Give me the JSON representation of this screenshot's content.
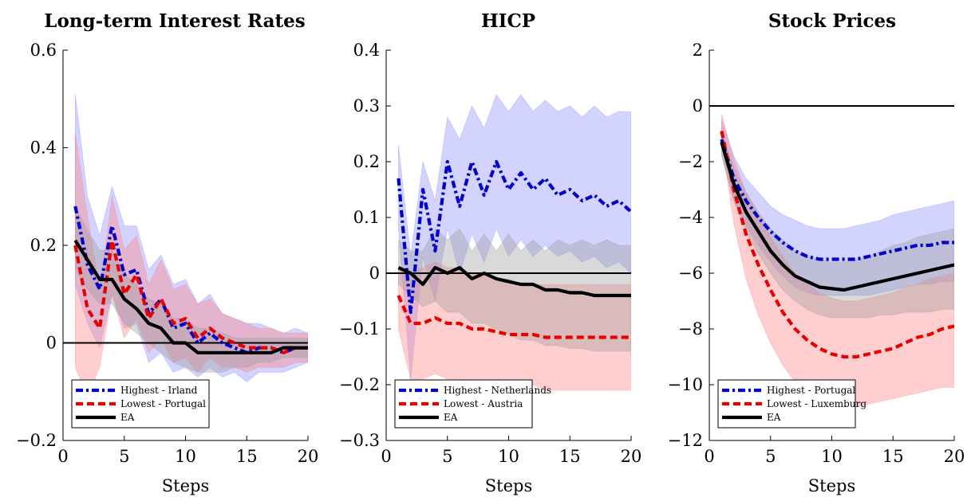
{
  "colors": {
    "highest": "#0000cc",
    "lowest": "#e60000",
    "ea": "#000000",
    "band_highest": "#8c8cff",
    "band_lowest": "#ff8080",
    "band_ea": "#9a9a9a"
  },
  "chart_data": [
    {
      "type": "line",
      "title": "Long-term Interest Rates",
      "xlabel": "Steps",
      "ylabel": "",
      "xlim": [
        0,
        20
      ],
      "ylim": [
        -0.2,
        0.6
      ],
      "xticks": [
        0,
        5,
        10,
        15,
        20
      ],
      "yticks": [
        -0.2,
        0,
        0.2,
        0.4,
        0.6
      ],
      "ytick_labels": [
        "−0.2",
        "0",
        "0.2",
        "0.4",
        "0.6"
      ],
      "zero_line": 0,
      "legend_position": "bottom-left",
      "x": [
        1,
        2,
        3,
        4,
        5,
        6,
        7,
        8,
        9,
        10,
        11,
        12,
        13,
        14,
        15,
        16,
        17,
        18,
        19,
        20
      ],
      "series": [
        {
          "name": "Highest - Irland",
          "style": "dashdot",
          "values": [
            0.28,
            0.16,
            0.11,
            0.24,
            0.14,
            0.15,
            0.06,
            0.09,
            0.03,
            0.04,
            0.0,
            0.02,
            0.0,
            -0.01,
            -0.02,
            -0.01,
            -0.01,
            -0.02,
            -0.01,
            -0.01
          ],
          "lower": [
            0.12,
            0.04,
            -0.01,
            0.1,
            0.03,
            0.04,
            -0.04,
            -0.02,
            -0.06,
            -0.05,
            -0.07,
            -0.05,
            -0.07,
            -0.06,
            -0.08,
            -0.06,
            -0.06,
            -0.06,
            -0.05,
            -0.04
          ],
          "upper": [
            0.51,
            0.3,
            0.22,
            0.32,
            0.24,
            0.24,
            0.15,
            0.18,
            0.12,
            0.13,
            0.08,
            0.1,
            0.06,
            0.05,
            0.04,
            0.04,
            0.03,
            0.02,
            0.03,
            0.02
          ]
        },
        {
          "name": "Lowest - Portugal",
          "style": "dashed",
          "values": [
            0.2,
            0.07,
            0.03,
            0.21,
            0.1,
            0.14,
            0.05,
            0.09,
            0.04,
            0.05,
            0.01,
            0.03,
            0.01,
            0.0,
            -0.01,
            -0.01,
            -0.01,
            -0.02,
            -0.01,
            -0.01
          ],
          "lower": [
            -0.05,
            -0.11,
            -0.05,
            0.1,
            0.01,
            0.05,
            -0.02,
            0.01,
            -0.04,
            -0.03,
            -0.06,
            -0.03,
            -0.05,
            -0.05,
            -0.06,
            -0.05,
            -0.05,
            -0.05,
            -0.04,
            -0.04
          ],
          "upper": [
            0.43,
            0.26,
            0.11,
            0.3,
            0.19,
            0.22,
            0.12,
            0.17,
            0.11,
            0.12,
            0.08,
            0.09,
            0.06,
            0.05,
            0.04,
            0.03,
            0.03,
            0.02,
            0.02,
            0.02
          ]
        },
        {
          "name": "EA",
          "style": "solid",
          "values": [
            0.21,
            0.17,
            0.13,
            0.13,
            0.09,
            0.07,
            0.04,
            0.03,
            0.0,
            0.0,
            -0.02,
            -0.02,
            -0.02,
            -0.02,
            -0.02,
            -0.02,
            -0.02,
            -0.01,
            -0.01,
            -0.01
          ],
          "lower": [
            0.15,
            0.11,
            0.08,
            0.08,
            0.04,
            0.02,
            0.0,
            -0.02,
            -0.04,
            -0.05,
            -0.06,
            -0.06,
            -0.06,
            -0.05,
            -0.05,
            -0.04,
            -0.04,
            -0.03,
            -0.03,
            -0.03
          ],
          "upper": [
            0.28,
            0.23,
            0.19,
            0.19,
            0.14,
            0.12,
            0.09,
            0.08,
            0.05,
            0.05,
            0.03,
            0.03,
            0.02,
            0.01,
            0.01,
            0.01,
            0.01,
            0.01,
            0.01,
            0.01
          ]
        }
      ]
    },
    {
      "type": "line",
      "title": "HICP",
      "xlabel": "Steps",
      "ylabel": "",
      "xlim": [
        0,
        20
      ],
      "ylim": [
        -0.3,
        0.4
      ],
      "xticks": [
        0,
        5,
        10,
        15,
        20
      ],
      "yticks": [
        -0.3,
        -0.2,
        -0.1,
        0,
        0.1,
        0.2,
        0.3,
        0.4
      ],
      "ytick_labels": [
        "−0.3",
        "−0.2",
        "−0.1",
        "0",
        "0.1",
        "0.2",
        "0.3",
        "0.4"
      ],
      "zero_line": 0,
      "legend_position": "bottom-left",
      "x": [
        1,
        2,
        3,
        4,
        5,
        6,
        7,
        8,
        9,
        10,
        11,
        12,
        13,
        14,
        15,
        16,
        17,
        18,
        19,
        20
      ],
      "series": [
        {
          "name": "Highest - Netherlands",
          "style": "dashdot",
          "values": [
            0.17,
            -0.07,
            0.15,
            0.04,
            0.2,
            0.12,
            0.2,
            0.14,
            0.2,
            0.15,
            0.18,
            0.15,
            0.17,
            0.14,
            0.15,
            0.13,
            0.14,
            0.12,
            0.13,
            0.11
          ],
          "lower": [
            0.08,
            -0.19,
            0.03,
            -0.05,
            0.08,
            0.0,
            0.07,
            0.02,
            0.08,
            0.03,
            0.06,
            0.03,
            0.05,
            0.03,
            0.04,
            0.02,
            0.03,
            0.01,
            0.02,
            0.0
          ],
          "upper": [
            0.23,
            0.03,
            0.2,
            0.13,
            0.28,
            0.24,
            0.3,
            0.26,
            0.32,
            0.29,
            0.32,
            0.29,
            0.31,
            0.29,
            0.3,
            0.28,
            0.3,
            0.28,
            0.29,
            0.29
          ]
        },
        {
          "name": "Lowest - Austria",
          "style": "dashed",
          "values": [
            -0.04,
            -0.09,
            -0.09,
            -0.08,
            -0.09,
            -0.09,
            -0.1,
            -0.1,
            -0.105,
            -0.11,
            -0.11,
            -0.11,
            -0.115,
            -0.115,
            -0.115,
            -0.115,
            -0.115,
            -0.115,
            -0.115,
            -0.115
          ],
          "lower": [
            -0.1,
            -0.19,
            -0.19,
            -0.18,
            -0.19,
            -0.19,
            -0.2,
            -0.2,
            -0.2,
            -0.2,
            -0.2,
            -0.2,
            -0.21,
            -0.21,
            -0.21,
            -0.21,
            -0.21,
            -0.21,
            -0.21,
            -0.21
          ],
          "upper": [
            0.01,
            0.0,
            0.01,
            0.02,
            0.01,
            0.01,
            0.0,
            0.0,
            -0.01,
            -0.01,
            -0.02,
            -0.02,
            -0.02,
            -0.02,
            -0.02,
            -0.02,
            -0.02,
            -0.02,
            -0.02,
            -0.02
          ]
        },
        {
          "name": "EA",
          "style": "solid",
          "values": [
            0.01,
            0.0,
            -0.02,
            0.01,
            0.0,
            0.01,
            -0.01,
            0.0,
            -0.01,
            -0.015,
            -0.02,
            -0.02,
            -0.03,
            -0.03,
            -0.035,
            -0.035,
            -0.04,
            -0.04,
            -0.04,
            -0.04
          ],
          "lower": [
            -0.02,
            -0.04,
            -0.06,
            -0.05,
            -0.07,
            -0.07,
            -0.09,
            -0.09,
            -0.1,
            -0.11,
            -0.12,
            -0.12,
            -0.13,
            -0.13,
            -0.135,
            -0.135,
            -0.14,
            -0.14,
            -0.14,
            -0.14
          ],
          "upper": [
            0.06,
            0.04,
            0.04,
            0.08,
            0.06,
            0.08,
            0.04,
            0.07,
            0.04,
            0.07,
            0.04,
            0.06,
            0.04,
            0.06,
            0.05,
            0.06,
            0.05,
            0.06,
            0.05,
            0.05
          ]
        }
      ]
    },
    {
      "type": "line",
      "title": "Stock Prices",
      "xlabel": "Steps",
      "ylabel": "",
      "xlim": [
        0,
        20
      ],
      "ylim": [
        -12,
        2
      ],
      "xticks": [
        0,
        5,
        10,
        15,
        20
      ],
      "yticks": [
        -12,
        -10,
        -8,
        -6,
        -4,
        -2,
        0,
        2
      ],
      "ytick_labels": [
        "−12",
        "−10",
        "−8",
        "−6",
        "−4",
        "−2",
        "0",
        "2"
      ],
      "zero_line": 0,
      "legend_position": "bottom-left",
      "x": [
        1,
        2,
        3,
        4,
        5,
        6,
        7,
        8,
        9,
        10,
        11,
        12,
        13,
        14,
        15,
        16,
        17,
        18,
        19,
        20
      ],
      "series": [
        {
          "name": "Highest - Portugal",
          "style": "dashdot",
          "values": [
            -1.2,
            -2.6,
            -3.4,
            -4.0,
            -4.5,
            -4.9,
            -5.2,
            -5.4,
            -5.5,
            -5.5,
            -5.5,
            -5.5,
            -5.4,
            -5.3,
            -5.2,
            -5.1,
            -5.0,
            -5.0,
            -4.9,
            -4.9
          ],
          "lower": [
            -1.8,
            -3.4,
            -4.3,
            -5.0,
            -5.6,
            -6.1,
            -6.5,
            -6.7,
            -6.8,
            -6.8,
            -6.8,
            -6.8,
            -6.8,
            -6.7,
            -6.6,
            -6.5,
            -6.4,
            -6.4,
            -6.3,
            -6.3
          ],
          "upper": [
            -0.5,
            -1.8,
            -2.6,
            -3.1,
            -3.6,
            -3.9,
            -4.1,
            -4.3,
            -4.4,
            -4.4,
            -4.4,
            -4.3,
            -4.2,
            -4.1,
            -3.9,
            -3.8,
            -3.7,
            -3.6,
            -3.5,
            -3.4
          ]
        },
        {
          "name": "Lowest - Luxemburg",
          "style": "dashed",
          "values": [
            -0.9,
            -3.0,
            -4.6,
            -5.7,
            -6.6,
            -7.4,
            -8.0,
            -8.4,
            -8.7,
            -8.9,
            -9.0,
            -9.0,
            -8.9,
            -8.8,
            -8.7,
            -8.5,
            -8.3,
            -8.2,
            -8.0,
            -7.9
          ],
          "lower": [
            -1.3,
            -4.2,
            -6.2,
            -7.5,
            -8.5,
            -9.3,
            -9.9,
            -10.3,
            -10.6,
            -10.7,
            -10.8,
            -10.8,
            -10.7,
            -10.6,
            -10.5,
            -10.4,
            -10.3,
            -10.2,
            -10.1,
            -10.1
          ],
          "upper": [
            -0.3,
            -1.9,
            -3.1,
            -3.9,
            -4.7,
            -5.4,
            -6.0,
            -6.4,
            -6.7,
            -6.9,
            -7.0,
            -7.0,
            -6.9,
            -6.8,
            -6.7,
            -6.5,
            -6.4,
            -6.2,
            -6.1,
            -6.0
          ]
        },
        {
          "name": "EA",
          "style": "solid",
          "values": [
            -1.3,
            -2.8,
            -3.8,
            -4.5,
            -5.2,
            -5.7,
            -6.1,
            -6.3,
            -6.5,
            -6.55,
            -6.6,
            -6.5,
            -6.4,
            -6.3,
            -6.2,
            -6.1,
            -6.0,
            -5.9,
            -5.8,
            -5.7
          ],
          "lower": [
            -1.7,
            -3.4,
            -4.5,
            -5.3,
            -6.0,
            -6.6,
            -7.0,
            -7.3,
            -7.5,
            -7.6,
            -7.6,
            -7.6,
            -7.6,
            -7.5,
            -7.5,
            -7.4,
            -7.4,
            -7.4,
            -7.3,
            -7.3
          ],
          "upper": [
            -0.9,
            -2.2,
            -3.1,
            -3.8,
            -4.4,
            -4.8,
            -5.2,
            -5.4,
            -5.5,
            -5.6,
            -5.6,
            -5.5,
            -5.4,
            -5.2,
            -5.0,
            -4.9,
            -4.7,
            -4.6,
            -4.5,
            -4.4
          ]
        }
      ]
    }
  ]
}
